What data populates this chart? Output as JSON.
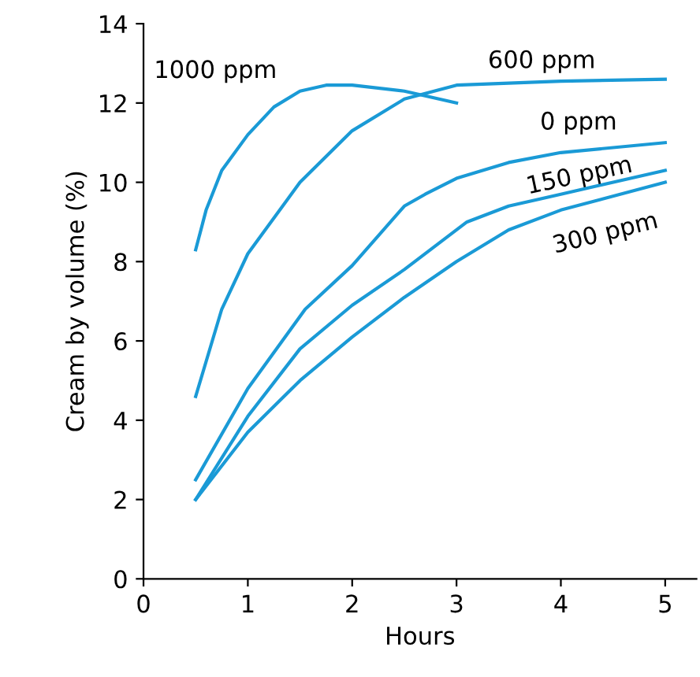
{
  "chart_data": {
    "type": "line",
    "xlabel": "Hours",
    "ylabel": "Cream by volume (%)",
    "xlim": [
      0,
      5.3
    ],
    "ylim": [
      0,
      14
    ],
    "xticks": [
      0,
      1,
      2,
      3,
      4,
      5
    ],
    "yticks": [
      0,
      2,
      4,
      6,
      8,
      10,
      12,
      14
    ],
    "grid": false,
    "legend": false,
    "marker": "none",
    "line_style": "solid",
    "series": [
      {
        "name": "1000 ppm",
        "color": "#1a9ad6",
        "x": [
          0.5,
          0.6,
          0.75,
          1,
          1.25,
          1.5,
          1.75,
          2,
          2.5,
          3
        ],
        "values": [
          8.3,
          9.3,
          10.3,
          11.2,
          11.9,
          12.3,
          12.45,
          12.45,
          12.3,
          12.0
        ]
      },
      {
        "name": "600 ppm",
        "color": "#1a9ad6",
        "x": [
          0.5,
          0.75,
          1,
          1.5,
          2,
          2.5,
          3,
          4,
          5
        ],
        "values": [
          4.6,
          6.8,
          8.2,
          10.0,
          11.3,
          12.1,
          12.45,
          12.55,
          12.6
        ]
      },
      {
        "name": "0 ppm",
        "color": "#1a9ad6",
        "x": [
          0.5,
          1,
          1.55,
          2,
          2.5,
          2.7,
          3,
          3.5,
          4,
          5
        ],
        "values": [
          2.5,
          4.8,
          6.8,
          7.9,
          9.4,
          9.7,
          10.1,
          10.5,
          10.75,
          11.0
        ]
      },
      {
        "name": "150 ppm",
        "color": "#1a9ad6",
        "x": [
          0.5,
          1,
          1.5,
          2,
          2.5,
          3.1,
          3.5,
          4,
          5
        ],
        "values": [
          2.0,
          4.1,
          5.8,
          6.9,
          7.8,
          9.0,
          9.4,
          9.7,
          10.3
        ]
      },
      {
        "name": "300 ppm",
        "color": "#1a9ad6",
        "x": [
          0.5,
          1,
          1.5,
          2,
          2.5,
          3,
          3.5,
          4,
          5
        ],
        "values": [
          2.0,
          3.7,
          5.0,
          6.1,
          7.1,
          8.0,
          8.8,
          9.3,
          10.0
        ]
      }
    ]
  }
}
